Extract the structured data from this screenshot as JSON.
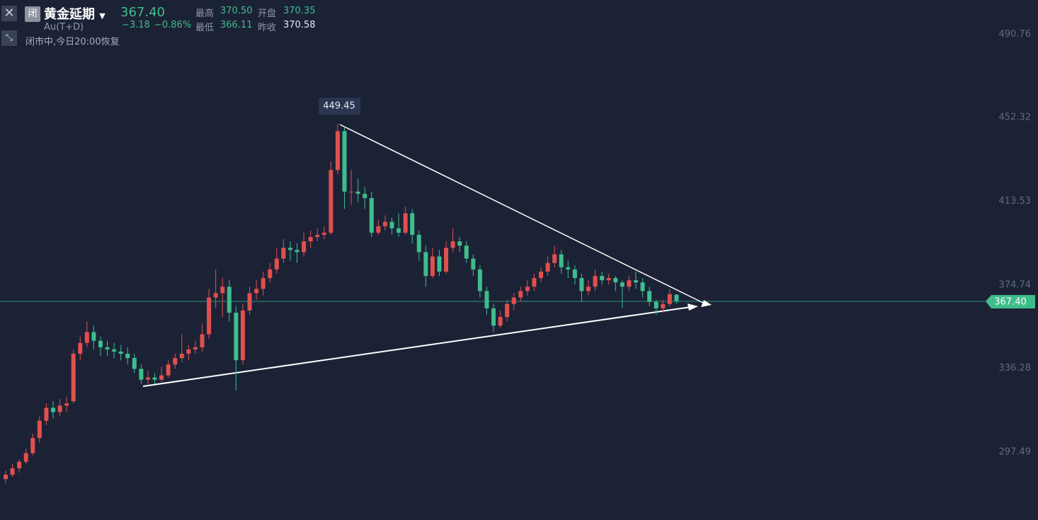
{
  "header": {
    "name": "黄金延期",
    "code": "Au(T+D)",
    "badge": "闭",
    "status": "闭市中,今日20:00恢复",
    "quote": {
      "last": "367.40",
      "change": "−3.18",
      "change_pct": "−0.86%",
      "high_label": "最高",
      "high": "370.50",
      "open_label": "开盘",
      "open": "370.35",
      "low_label": "最低",
      "low": "366.11",
      "prev_close_label": "昨收",
      "prev_close": "370.58"
    }
  },
  "chart_data": {
    "type": "candlestick",
    "up_color": "#e0504e",
    "down_color": "#3ebd8c",
    "ylim": [
      266.07,
      506.65
    ],
    "yticks": [
      490.76,
      452.32,
      413.53,
      374.74,
      336.28,
      297.49
    ],
    "candles": [
      [
        285,
        289,
        283,
        287
      ],
      [
        287,
        292,
        286,
        290
      ],
      [
        290,
        294,
        288,
        293
      ],
      [
        293,
        299,
        292,
        297
      ],
      [
        297,
        306,
        296,
        304
      ],
      [
        304,
        314,
        302,
        312
      ],
      [
        312,
        320,
        310,
        318
      ],
      [
        318,
        321,
        313,
        316
      ],
      [
        316,
        322,
        314,
        319
      ],
      [
        319,
        323,
        316,
        320
      ],
      [
        321,
        345,
        320,
        343
      ],
      [
        343,
        351,
        340,
        348
      ],
      [
        348,
        358,
        346,
        353
      ],
      [
        353,
        356,
        345,
        349
      ],
      [
        349,
        351,
        342,
        346
      ],
      [
        346,
        349,
        342,
        345
      ],
      [
        345,
        348,
        341,
        344
      ],
      [
        344,
        347,
        340,
        343
      ],
      [
        343,
        346,
        338,
        341
      ],
      [
        341,
        343,
        334,
        336
      ],
      [
        336,
        338,
        329,
        331
      ],
      [
        331,
        335,
        329,
        332
      ],
      [
        332,
        334,
        329,
        331
      ],
      [
        331,
        337,
        330,
        333
      ],
      [
        333,
        340,
        332,
        338
      ],
      [
        338,
        343,
        336,
        341
      ],
      [
        341,
        352,
        339,
        343
      ],
      [
        343,
        347,
        340,
        345
      ],
      [
        345,
        349,
        343,
        346
      ],
      [
        346,
        357,
        344,
        352
      ],
      [
        352,
        373,
        350,
        369
      ],
      [
        369,
        382,
        364,
        371
      ],
      [
        371,
        378,
        360,
        374
      ],
      [
        374,
        377,
        358,
        362
      ],
      [
        362,
        365,
        326,
        340
      ],
      [
        340,
        366,
        338,
        363
      ],
      [
        363,
        374,
        361,
        371
      ],
      [
        371,
        377,
        368,
        373
      ],
      [
        373,
        381,
        370,
        378
      ],
      [
        378,
        385,
        376,
        382
      ],
      [
        382,
        392,
        380,
        387
      ],
      [
        387,
        396,
        385,
        392
      ],
      [
        392,
        395,
        386,
        391
      ],
      [
        391,
        394,
        385,
        390
      ],
      [
        390,
        399,
        388,
        395
      ],
      [
        395,
        400,
        392,
        397
      ],
      [
        397,
        401,
        395,
        398
      ],
      [
        398,
        402,
        396,
        399
      ],
      [
        399,
        432,
        398,
        428
      ],
      [
        428,
        449.45,
        426,
        446
      ],
      [
        446,
        448,
        410,
        418
      ],
      [
        418,
        428,
        412,
        418
      ],
      [
        418,
        424,
        413,
        417
      ],
      [
        417,
        420,
        410,
        415
      ],
      [
        415,
        418,
        397,
        399
      ],
      [
        399,
        405,
        398,
        402
      ],
      [
        402,
        407,
        400,
        404
      ],
      [
        404,
        406,
        398,
        401
      ],
      [
        401,
        408,
        397,
        399
      ],
      [
        399,
        411,
        398,
        408
      ],
      [
        408,
        410,
        394,
        398
      ],
      [
        398,
        400,
        386,
        390
      ],
      [
        390,
        393,
        374,
        379
      ],
      [
        379,
        392,
        378,
        388
      ],
      [
        388,
        391,
        379,
        381
      ],
      [
        381,
        395,
        380,
        392
      ],
      [
        392,
        401,
        390,
        395
      ],
      [
        395,
        397,
        390,
        393
      ],
      [
        393,
        395,
        385,
        387
      ],
      [
        387,
        389,
        379,
        382
      ],
      [
        382,
        384,
        369,
        372
      ],
      [
        372,
        374,
        361,
        364
      ],
      [
        364,
        366,
        353,
        356
      ],
      [
        356,
        363,
        355,
        360
      ],
      [
        360,
        368,
        358,
        366
      ],
      [
        366,
        371,
        363,
        369
      ],
      [
        369,
        374,
        367,
        372
      ],
      [
        372,
        377,
        370,
        374
      ],
      [
        374,
        380,
        372,
        378
      ],
      [
        378,
        383,
        376,
        381
      ],
      [
        381,
        388,
        379,
        385
      ],
      [
        385,
        393,
        383,
        389
      ],
      [
        389,
        391,
        380,
        383
      ],
      [
        383,
        386,
        378,
        382
      ],
      [
        382,
        384,
        375,
        378
      ],
      [
        378,
        380,
        367,
        372
      ],
      [
        372,
        377,
        370,
        374
      ],
      [
        374,
        382,
        372,
        379
      ],
      [
        379,
        381,
        375,
        377
      ],
      [
        377,
        380,
        375,
        378
      ],
      [
        378,
        379,
        372,
        376
      ],
      [
        376,
        377,
        364,
        374
      ],
      [
        374,
        379,
        372,
        377
      ],
      [
        377,
        381,
        373,
        376
      ],
      [
        376,
        378,
        369,
        372
      ],
      [
        372,
        374,
        365,
        367
      ],
      [
        367,
        368,
        361,
        364
      ],
      [
        364,
        368,
        362,
        366
      ],
      [
        366,
        373,
        365,
        370.58
      ],
      [
        370.35,
        370.5,
        366.11,
        367.4
      ]
    ]
  }
}
